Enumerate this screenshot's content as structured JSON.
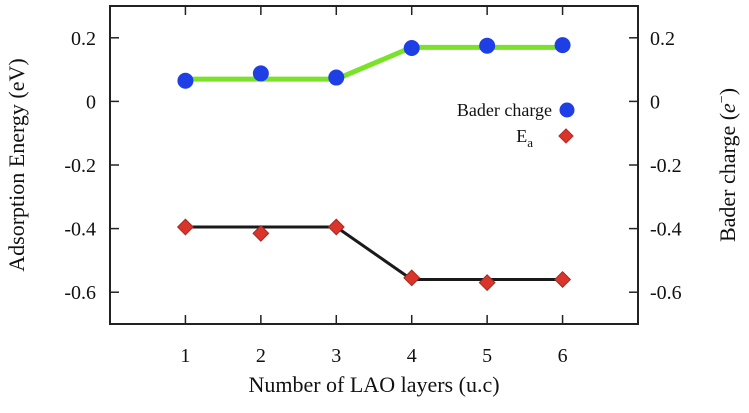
{
  "chart_data": {
    "type": "line+scatter",
    "xlabel": "Number of LAO layers (u.c)",
    "ylabel_left": "Adsorption Energy (eV)",
    "ylabel_right_prefix": "Bader charge (",
    "ylabel_right_unit": "e",
    "ylabel_right_sup": "−",
    "ylabel_right_suffix": ")",
    "x_ticks": [
      "1",
      "2",
      "3",
      "4",
      "5",
      "6"
    ],
    "x": [
      1,
      2,
      3,
      4,
      5,
      6
    ],
    "xlim": [
      0,
      7
    ],
    "ylim": [
      -0.7,
      0.3
    ],
    "y_ticks": [
      0.2,
      0,
      -0.2,
      -0.4,
      -0.6
    ],
    "y_tick_labels": [
      "0.2",
      "0",
      "-0.2",
      "-0.4",
      "-0.6"
    ],
    "series": [
      {
        "name": "Bader charge",
        "marker": "circle",
        "color": "#1f3fe6",
        "axis": "right",
        "values": [
          0.065,
          0.088,
          0.075,
          0.168,
          0.175,
          0.177
        ]
      },
      {
        "name": "E",
        "name_subscript": "a",
        "marker": "diamond",
        "color": "#d9352b",
        "axis": "left",
        "values": [
          -0.395,
          -0.415,
          -0.395,
          -0.555,
          -0.57,
          -0.56
        ]
      }
    ],
    "fit_lines": [
      {
        "color": "#7be22a",
        "values": [
          0.07,
          0.07,
          0.07,
          0.17,
          0.17,
          0.17
        ]
      },
      {
        "color": "#1a1a1a",
        "values": [
          -0.395,
          -0.395,
          -0.395,
          -0.56,
          -0.56,
          -0.56
        ]
      }
    ]
  }
}
